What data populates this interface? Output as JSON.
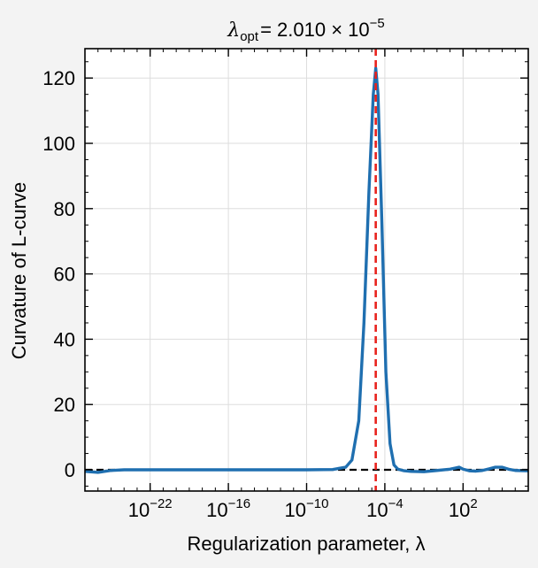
{
  "chart_data": {
    "type": "line",
    "title": {
      "lambda": "λ",
      "subscript": "opt",
      "equals": "= 2.010 × 10",
      "exponent": "−5"
    },
    "xlabel": "Regularization parameter, λ",
    "ylabel": "Curvature of L-curve",
    "x_scale": "log",
    "xlim": [
      1e-27,
      10000000.0
    ],
    "ylim": [
      -6.5,
      129
    ],
    "x_ticks": [
      {
        "value": 1e-22,
        "base": "10",
        "exp": "−22"
      },
      {
        "value": 1e-16,
        "base": "10",
        "exp": "−16"
      },
      {
        "value": 1e-10,
        "base": "10",
        "exp": "−10"
      },
      {
        "value": 0.0001,
        "base": "10",
        "exp": "−4"
      },
      {
        "value": 100.0,
        "base": "10",
        "exp": "2"
      }
    ],
    "y_ticks": [
      0,
      20,
      40,
      60,
      80,
      100,
      120
    ],
    "grid": true,
    "series": [
      {
        "color": "#1f6fb0",
        "points": [
          [
            1e-27,
            -0.5
          ],
          [
            1e-26,
            -0.8
          ],
          [
            1e-25,
            -0.2
          ],
          [
            1e-24,
            0.0
          ],
          [
            1e-22,
            0.0
          ],
          [
            1e-18,
            0.0
          ],
          [
            1e-14,
            0.0
          ],
          [
            1e-10,
            0.0
          ],
          [
            1e-08,
            0.1
          ],
          [
            1e-07,
            0.8
          ],
          [
            3e-07,
            3
          ],
          [
            1e-06,
            15
          ],
          [
            2.5e-06,
            45
          ],
          [
            6e-06,
            85
          ],
          [
            1.3e-05,
            115
          ],
          [
            2.01e-05,
            123
          ],
          [
            3e-05,
            115
          ],
          [
            6e-05,
            75
          ],
          [
            0.00012,
            30
          ],
          [
            0.00025,
            8
          ],
          [
            0.0005,
            1.5
          ],
          [
            0.001,
            0.2
          ],
          [
            0.003,
            -0.3
          ],
          [
            0.01,
            -0.5
          ],
          [
            0.1,
            -0.6
          ],
          [
            1,
            -0.2
          ],
          [
            10.0,
            0.2
          ],
          [
            30.0,
            0.6
          ],
          [
            50.0,
            0.8
          ],
          [
            100.0,
            0.2
          ],
          [
            300.0,
            -0.3
          ],
          [
            1000.0,
            -0.4
          ],
          [
            3000.0,
            -0.2
          ],
          [
            10000.0,
            0.3
          ],
          [
            30000.0,
            0.8
          ],
          [
            100000.0,
            0.8
          ],
          [
            300000.0,
            0.2
          ],
          [
            1000000.0,
            -0.2
          ],
          [
            10000000.0,
            -0.3
          ]
        ]
      }
    ],
    "reference_lines": [
      {
        "orientation": "vertical",
        "x": 2.01e-05,
        "color": "#e8221d",
        "style": "dashed"
      },
      {
        "orientation": "horizontal",
        "y": 0,
        "color": "#000000",
        "style": "dashed"
      }
    ]
  }
}
